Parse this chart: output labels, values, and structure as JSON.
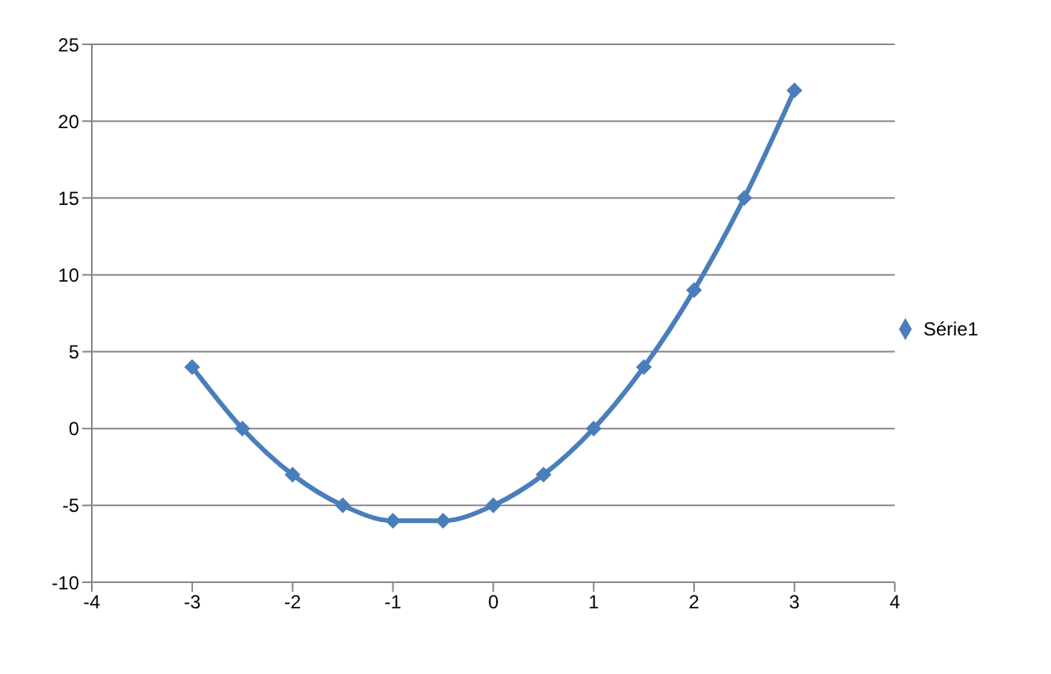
{
  "chart_data": {
    "type": "line",
    "x": [
      -3,
      -2.5,
      -2,
      -1.5,
      -1,
      -0.5,
      0,
      0.5,
      1,
      1.5,
      2,
      2.5,
      3
    ],
    "series": [
      {
        "name": "Série1",
        "color": "#4a7ebb",
        "values": [
          4,
          0,
          -3,
          -5,
          -6,
          -6,
          -5,
          -3,
          0,
          4,
          9,
          15,
          22
        ]
      }
    ],
    "xlim": [
      -4,
      4
    ],
    "xticks": [
      -4,
      -3,
      -2,
      -1,
      0,
      1,
      2,
      3,
      4
    ],
    "ylim": [
      -10,
      25
    ],
    "yticks": [
      -10,
      -5,
      0,
      5,
      10,
      15,
      20,
      25
    ],
    "grid": "y",
    "legend": "right",
    "marker": "diamond",
    "line_style": "solid"
  }
}
